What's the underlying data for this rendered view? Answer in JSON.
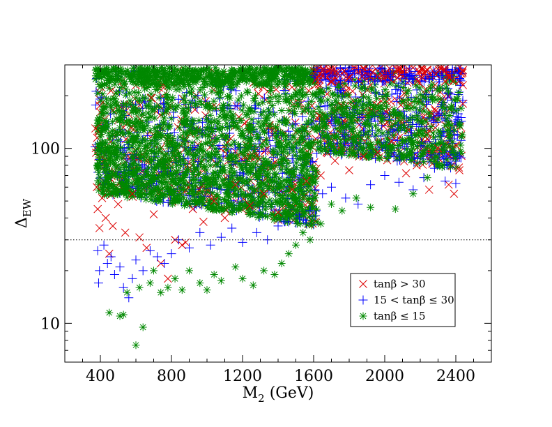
{
  "chart_data": {
    "type": "scatter",
    "title": "",
    "xlabel_main": "M",
    "xlabel_sub": "2",
    "xlabel_unit": " (GeV)",
    "ylabel_main": "Δ",
    "ylabel_sub": "EW",
    "x_scale": "linear",
    "y_scale": "log",
    "xlim": [
      200,
      2600
    ],
    "ylim": [
      6,
      300
    ],
    "x_ticks": [
      400,
      800,
      1200,
      1600,
      2000,
      2400
    ],
    "x_tick_labels": [
      "400",
      "800",
      "1200",
      "1600",
      "2000",
      "2400"
    ],
    "x_minor_step": 100,
    "y_ticks": [
      10,
      100
    ],
    "y_tick_labels": [
      "10",
      "100"
    ],
    "reference_line": {
      "y": 30,
      "style": "dotted"
    },
    "legend_position": "lower-right",
    "series": [
      {
        "name": "tanβ > 30",
        "label_parts": [
          "tanβ > 30"
        ],
        "marker": "x",
        "color": "#dd0000",
        "points": [
          [
            372,
            130
          ],
          [
            380,
            60
          ],
          [
            385,
            45
          ],
          [
            395,
            35
          ],
          [
            410,
            52
          ],
          [
            430,
            40
          ],
          [
            450,
            25
          ],
          [
            470,
            36
          ],
          [
            500,
            48
          ],
          [
            540,
            33
          ],
          [
            580,
            55
          ],
          [
            620,
            31
          ],
          [
            660,
            27
          ],
          [
            700,
            42
          ],
          [
            740,
            22
          ],
          [
            780,
            18
          ],
          [
            820,
            30
          ],
          [
            860,
            28
          ],
          [
            880,
            29
          ],
          [
            920,
            45
          ],
          [
            980,
            38
          ],
          [
            1040,
            50
          ],
          [
            1100,
            40
          ],
          [
            1160,
            62
          ],
          [
            1240,
            47
          ],
          [
            1320,
            55
          ],
          [
            1400,
            43
          ],
          [
            1480,
            58
          ],
          [
            1560,
            65
          ],
          [
            1640,
            70
          ],
          [
            1720,
            85
          ],
          [
            1800,
            75
          ],
          [
            1880,
            90
          ],
          [
            1960,
            95
          ],
          [
            2040,
            110
          ],
          [
            2120,
            72
          ],
          [
            2180,
            80
          ],
          [
            2250,
            58
          ],
          [
            2300,
            100
          ],
          [
            2360,
            62
          ],
          [
            2390,
            55
          ],
          [
            2420,
            75
          ],
          [
            2440,
            280
          ],
          [
            2440,
            230
          ],
          [
            2440,
            180
          ]
        ]
      },
      {
        "name": "15 < tanβ ≤ 30",
        "label_parts": [
          "15 < tanβ ≤ 30"
        ],
        "marker": "plus",
        "color": "#0000ff",
        "points": [
          [
            385,
            26
          ],
          [
            390,
            17
          ],
          [
            395,
            20
          ],
          [
            420,
            28
          ],
          [
            440,
            22
          ],
          [
            460,
            24
          ],
          [
            480,
            19
          ],
          [
            510,
            21
          ],
          [
            530,
            16
          ],
          [
            560,
            14
          ],
          [
            580,
            18
          ],
          [
            600,
            23
          ],
          [
            640,
            20
          ],
          [
            680,
            26
          ],
          [
            720,
            24
          ],
          [
            760,
            22
          ],
          [
            800,
            25
          ],
          [
            840,
            30
          ],
          [
            900,
            27
          ],
          [
            960,
            33
          ],
          [
            1020,
            28
          ],
          [
            1080,
            31
          ],
          [
            1140,
            35
          ],
          [
            1200,
            29
          ],
          [
            1280,
            33
          ],
          [
            1340,
            30
          ],
          [
            1400,
            36
          ],
          [
            1460,
            38
          ],
          [
            1520,
            40
          ],
          [
            1580,
            44
          ],
          [
            1650,
            55
          ],
          [
            1700,
            60
          ],
          [
            1780,
            52
          ],
          [
            1850,
            48
          ],
          [
            1920,
            62
          ],
          [
            2000,
            70
          ],
          [
            2080,
            64
          ],
          [
            2160,
            58
          ],
          [
            2220,
            68
          ],
          [
            2280,
            77
          ],
          [
            2340,
            65
          ],
          [
            2400,
            63
          ],
          [
            2420,
            90
          ],
          [
            2430,
            150
          ]
        ]
      },
      {
        "name": "tanβ ≤ 15",
        "label_parts": [
          "tanβ ≤ 15"
        ],
        "marker": "star",
        "color": "#008800",
        "points": [
          [
            450,
            11.5
          ],
          [
            510,
            11
          ],
          [
            530,
            11.2
          ],
          [
            550,
            15
          ],
          [
            600,
            7.5
          ],
          [
            640,
            9.5
          ],
          [
            620,
            16
          ],
          [
            680,
            17
          ],
          [
            700,
            20
          ],
          [
            740,
            15
          ],
          [
            780,
            16
          ],
          [
            820,
            18
          ],
          [
            860,
            15.5
          ],
          [
            900,
            20
          ],
          [
            960,
            17
          ],
          [
            1000,
            15.5
          ],
          [
            1040,
            19
          ],
          [
            1080,
            17.5
          ],
          [
            1160,
            21
          ],
          [
            1200,
            18
          ],
          [
            1260,
            16.5
          ],
          [
            1320,
            20
          ],
          [
            1380,
            19
          ],
          [
            1420,
            22
          ],
          [
            1460,
            25
          ],
          [
            1500,
            28
          ],
          [
            1540,
            33
          ],
          [
            1580,
            30
          ],
          [
            1640,
            37
          ],
          [
            1700,
            48
          ],
          [
            1760,
            44
          ],
          [
            1840,
            52
          ],
          [
            1920,
            46
          ],
          [
            2060,
            45
          ],
          [
            2160,
            55
          ],
          [
            2240,
            68
          ],
          [
            2300,
            80
          ],
          [
            2380,
            95
          ],
          [
            2420,
            140
          ]
        ]
      }
    ]
  }
}
